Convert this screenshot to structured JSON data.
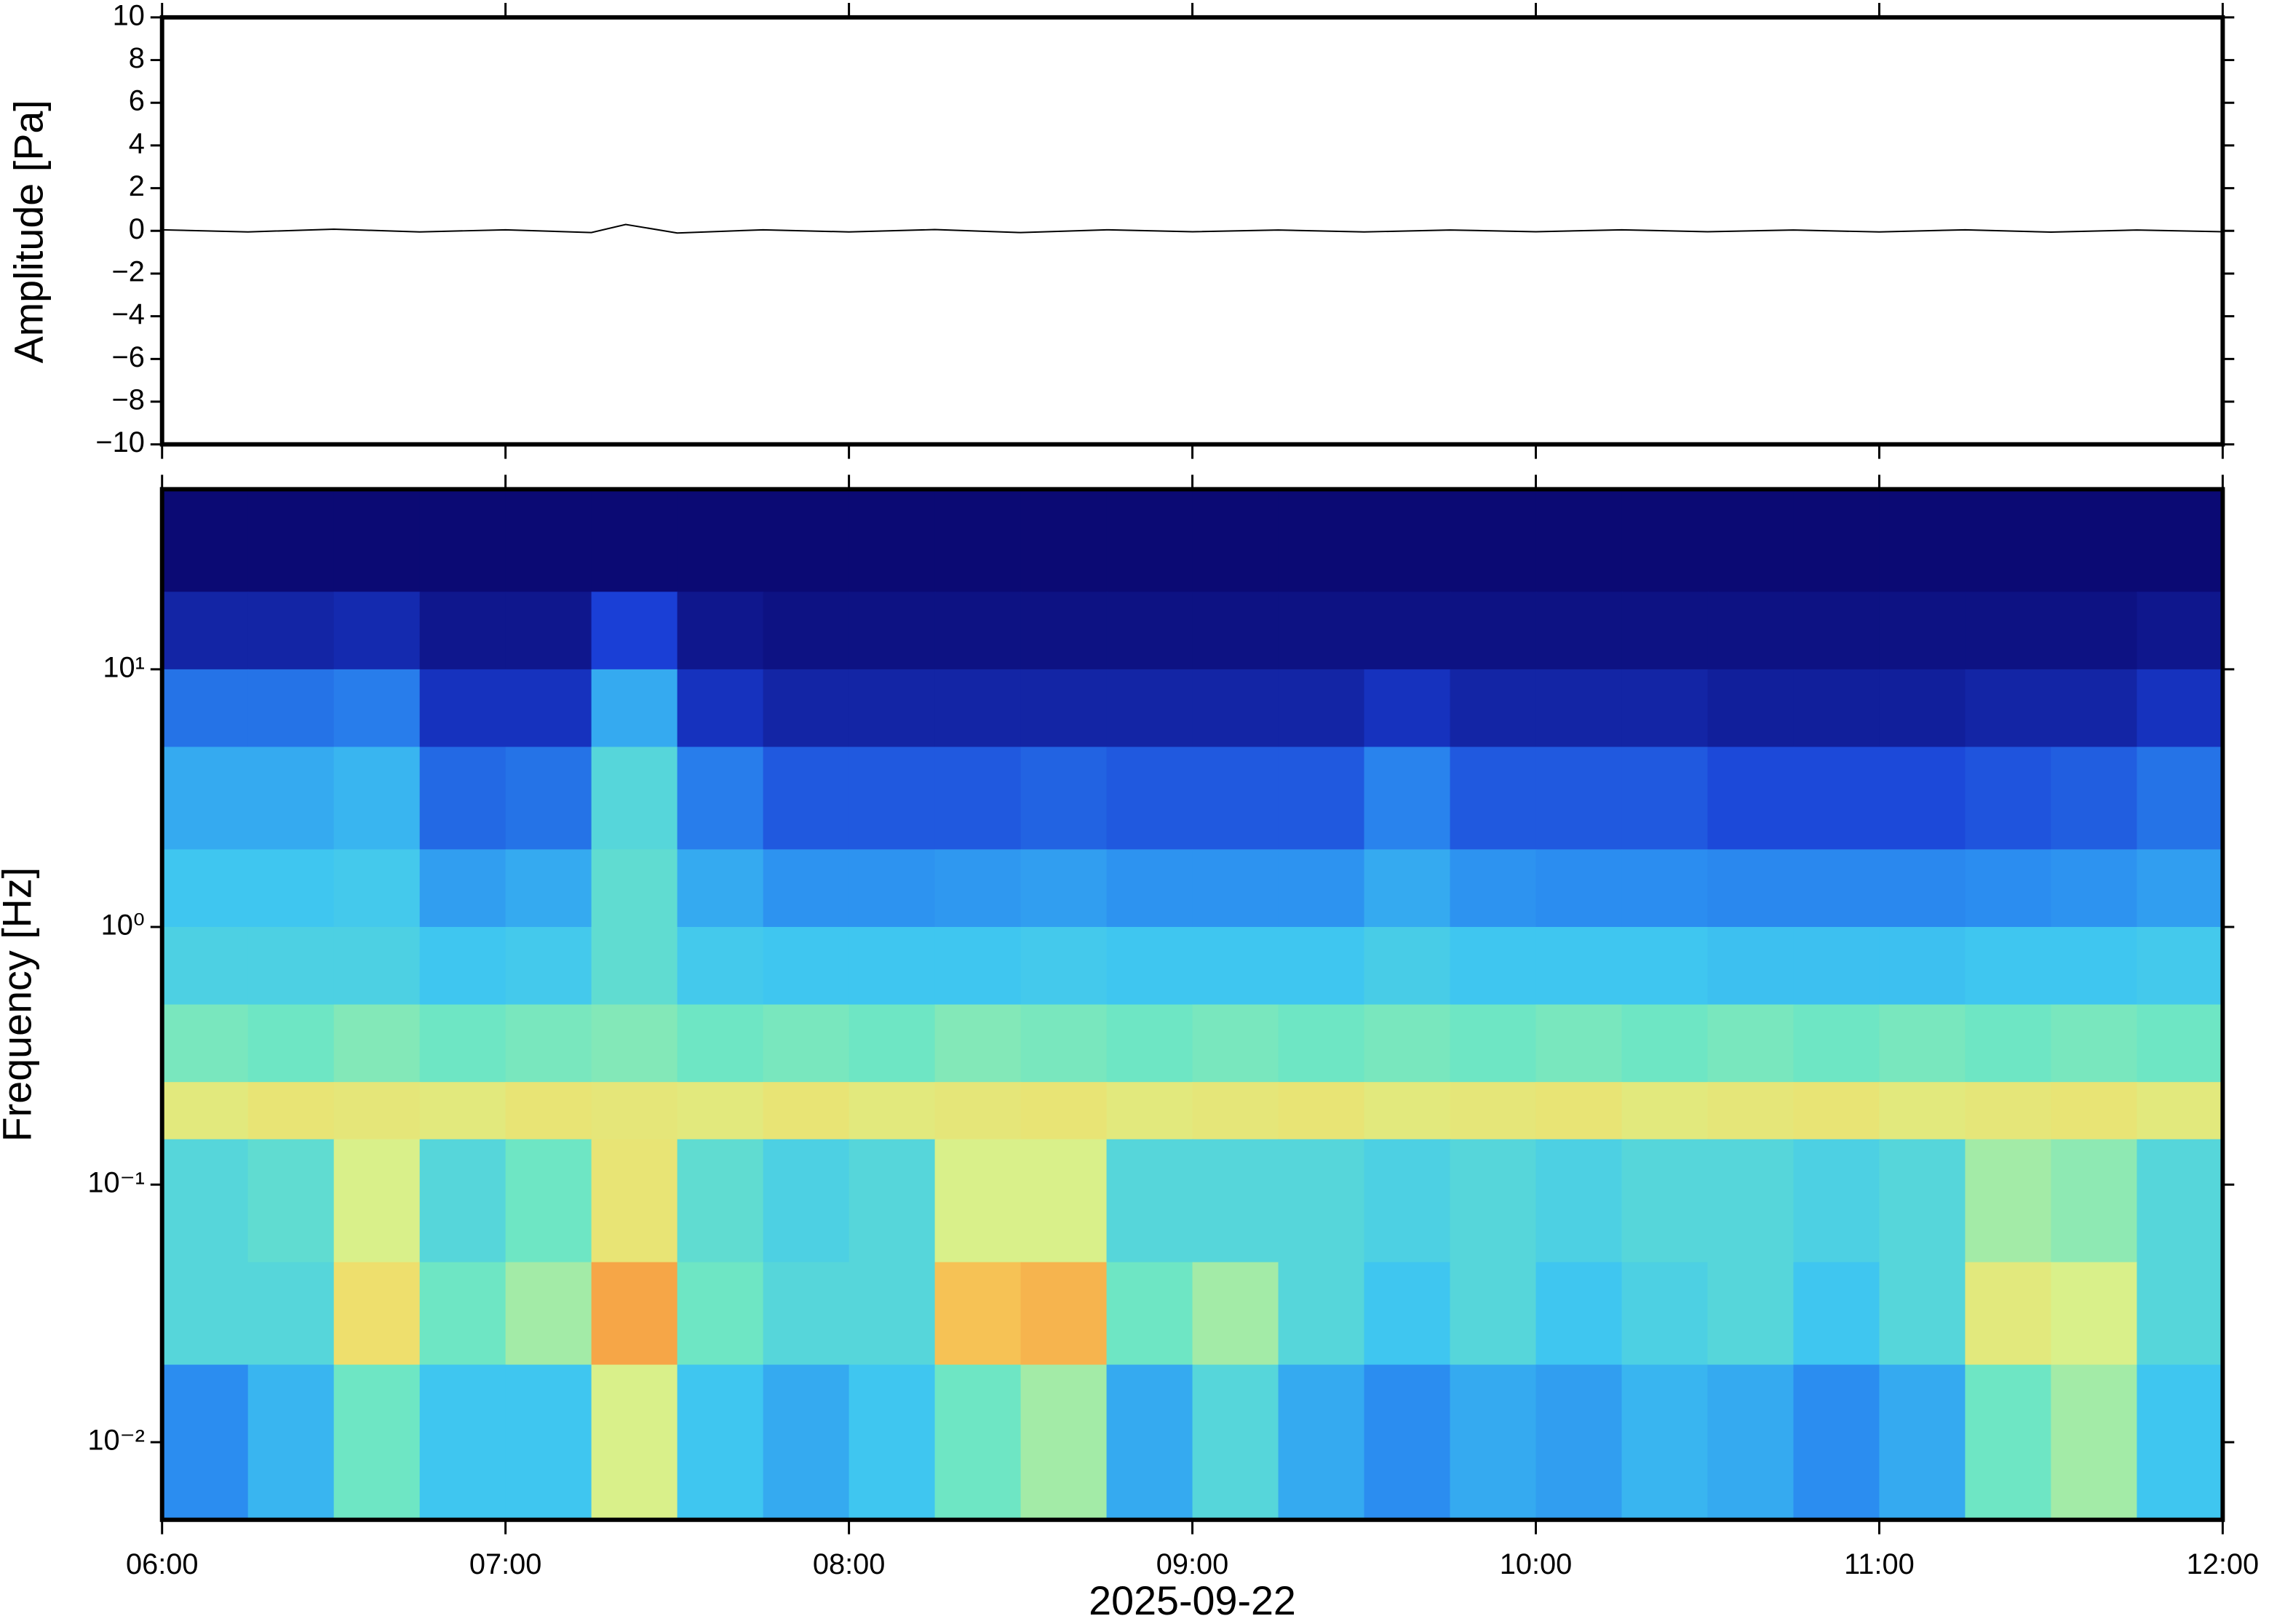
{
  "chart_data": [
    {
      "type": "line",
      "ylabel": "Amplitude [Pa]",
      "color": "#000000",
      "xlim": [
        6,
        12
      ],
      "xticks": [
        6,
        7,
        8,
        9,
        10,
        11,
        12
      ],
      "ylim": [
        -10,
        10
      ],
      "yticks": [
        {
          "value": -10,
          "label": "−10"
        },
        {
          "value": -8,
          "label": "−8"
        },
        {
          "value": -6,
          "label": "−6"
        },
        {
          "value": -4,
          "label": "−4"
        },
        {
          "value": -2,
          "label": "−2"
        },
        0,
        2,
        4,
        6,
        8,
        10
      ],
      "x": [
        6,
        6.25,
        6.5,
        6.75,
        7,
        7.25,
        7.35,
        7.5,
        7.75,
        8,
        8.25,
        8.5,
        8.75,
        9,
        9.25,
        9.5,
        9.75,
        10,
        10.25,
        10.5,
        10.75,
        11,
        11.25,
        11.5,
        11.75,
        12
      ],
      "values": [
        0.05,
        -0.05,
        0.08,
        -0.05,
        0.05,
        -0.08,
        0.3,
        -0.1,
        0.05,
        -0.05,
        0.06,
        -0.08,
        0.05,
        -0.04,
        0.04,
        -0.05,
        0.04,
        -0.04,
        0.05,
        -0.04,
        0.04,
        -0.05,
        0.05,
        -0.06,
        0.04,
        -0.04
      ]
    },
    {
      "type": "heatmap",
      "ylabel": "Frequency [Hz]",
      "xlabel": "2025-09-22",
      "log_y": true,
      "xlim": [
        6,
        12
      ],
      "xticks": [
        {
          "value": 6,
          "label": "06:00"
        },
        {
          "value": 7,
          "label": "07:00"
        },
        {
          "value": 8,
          "label": "08:00"
        },
        {
          "value": 9,
          "label": "09:00"
        },
        {
          "value": 10,
          "label": "10:00"
        },
        {
          "value": 11,
          "label": "11:00"
        },
        {
          "value": 12,
          "label": "12:00"
        }
      ],
      "ylim": [
        0.005,
        50
      ],
      "yticks": [
        {
          "value": 0.01,
          "label": "10⁻²"
        },
        {
          "value": 0.1,
          "label": "10⁻¹"
        },
        {
          "value": 1,
          "label": "10⁰"
        },
        {
          "value": 10,
          "label": "10¹"
        }
      ],
      "colormap": [
        [
          0,
          "#0b0a74"
        ],
        [
          0.2,
          "#1a3fd6"
        ],
        [
          0.35,
          "#2b8df0"
        ],
        [
          0.45,
          "#3fc6f0"
        ],
        [
          0.55,
          "#6ee6c4"
        ],
        [
          0.65,
          "#d9f08a"
        ],
        [
          0.75,
          "#f7d860"
        ],
        [
          0.85,
          "#f5903c"
        ],
        [
          1,
          "#e03020"
        ]
      ],
      "x_edges": [
        6,
        6.25,
        6.5,
        6.75,
        7,
        7.25,
        7.5,
        7.75,
        8,
        8.25,
        8.5,
        8.75,
        9,
        9.25,
        9.5,
        9.75,
        10,
        10.25,
        10.5,
        10.75,
        11,
        11.25,
        11.5,
        11.75,
        12
      ],
      "y_edges": [
        50,
        20,
        10,
        5,
        2,
        1,
        0.5,
        0.25,
        0.15,
        0.05,
        0.02,
        0.005
      ],
      "z": [
        [
          0,
          0,
          0,
          0,
          0,
          0,
          0,
          0,
          0,
          0,
          0,
          0,
          0,
          0,
          0,
          0,
          0,
          0,
          0,
          0,
          0,
          0,
          0,
          0
        ],
        [
          0.1,
          0.1,
          0.12,
          0.05,
          0.05,
          0.2,
          0.05,
          0.03,
          0.03,
          0.03,
          0.03,
          0.03,
          0.03,
          0.03,
          0.03,
          0.03,
          0.03,
          0.03,
          0.03,
          0.03,
          0.03,
          0.03,
          0.03,
          0.05
        ],
        [
          0.3,
          0.3,
          0.32,
          0.15,
          0.15,
          0.4,
          0.15,
          0.1,
          0.1,
          0.1,
          0.1,
          0.1,
          0.1,
          0.1,
          0.15,
          0.1,
          0.1,
          0.1,
          0.08,
          0.08,
          0.08,
          0.1,
          0.1,
          0.15
        ],
        [
          0.4,
          0.4,
          0.42,
          0.28,
          0.3,
          0.5,
          0.32,
          0.25,
          0.25,
          0.25,
          0.27,
          0.25,
          0.25,
          0.25,
          0.33,
          0.25,
          0.25,
          0.25,
          0.22,
          0.22,
          0.22,
          0.24,
          0.26,
          0.3
        ],
        [
          0.45,
          0.45,
          0.46,
          0.38,
          0.4,
          0.52,
          0.4,
          0.36,
          0.36,
          0.37,
          0.38,
          0.36,
          0.36,
          0.36,
          0.4,
          0.36,
          0.35,
          0.35,
          0.34,
          0.34,
          0.34,
          0.35,
          0.36,
          0.38
        ],
        [
          0.48,
          0.48,
          0.48,
          0.45,
          0.46,
          0.52,
          0.46,
          0.45,
          0.45,
          0.45,
          0.46,
          0.45,
          0.45,
          0.45,
          0.47,
          0.45,
          0.45,
          0.45,
          0.44,
          0.44,
          0.44,
          0.45,
          0.45,
          0.46
        ],
        [
          0.56,
          0.55,
          0.57,
          0.55,
          0.56,
          0.57,
          0.55,
          0.56,
          0.55,
          0.57,
          0.56,
          0.55,
          0.56,
          0.55,
          0.56,
          0.55,
          0.56,
          0.55,
          0.56,
          0.55,
          0.56,
          0.55,
          0.56,
          0.55
        ],
        [
          0.68,
          0.7,
          0.69,
          0.68,
          0.7,
          0.69,
          0.68,
          0.7,
          0.68,
          0.69,
          0.7,
          0.68,
          0.69,
          0.7,
          0.68,
          0.69,
          0.7,
          0.68,
          0.69,
          0.7,
          0.68,
          0.69,
          0.7,
          0.68
        ],
        [
          0.5,
          0.52,
          0.65,
          0.5,
          0.55,
          0.7,
          0.52,
          0.48,
          0.5,
          0.65,
          0.65,
          0.5,
          0.5,
          0.5,
          0.48,
          0.5,
          0.48,
          0.5,
          0.5,
          0.48,
          0.5,
          0.6,
          0.58,
          0.5
        ],
        [
          0.5,
          0.5,
          0.72,
          0.55,
          0.6,
          0.82,
          0.55,
          0.5,
          0.5,
          0.78,
          0.8,
          0.55,
          0.6,
          0.5,
          0.45,
          0.5,
          0.45,
          0.48,
          0.5,
          0.45,
          0.5,
          0.68,
          0.65,
          0.5
        ],
        [
          0.35,
          0.42,
          0.55,
          0.45,
          0.45,
          0.65,
          0.45,
          0.4,
          0.45,
          0.55,
          0.6,
          0.4,
          0.5,
          0.4,
          0.35,
          0.4,
          0.38,
          0.42,
          0.4,
          0.35,
          0.4,
          0.55,
          0.6,
          0.45
        ]
      ]
    }
  ]
}
